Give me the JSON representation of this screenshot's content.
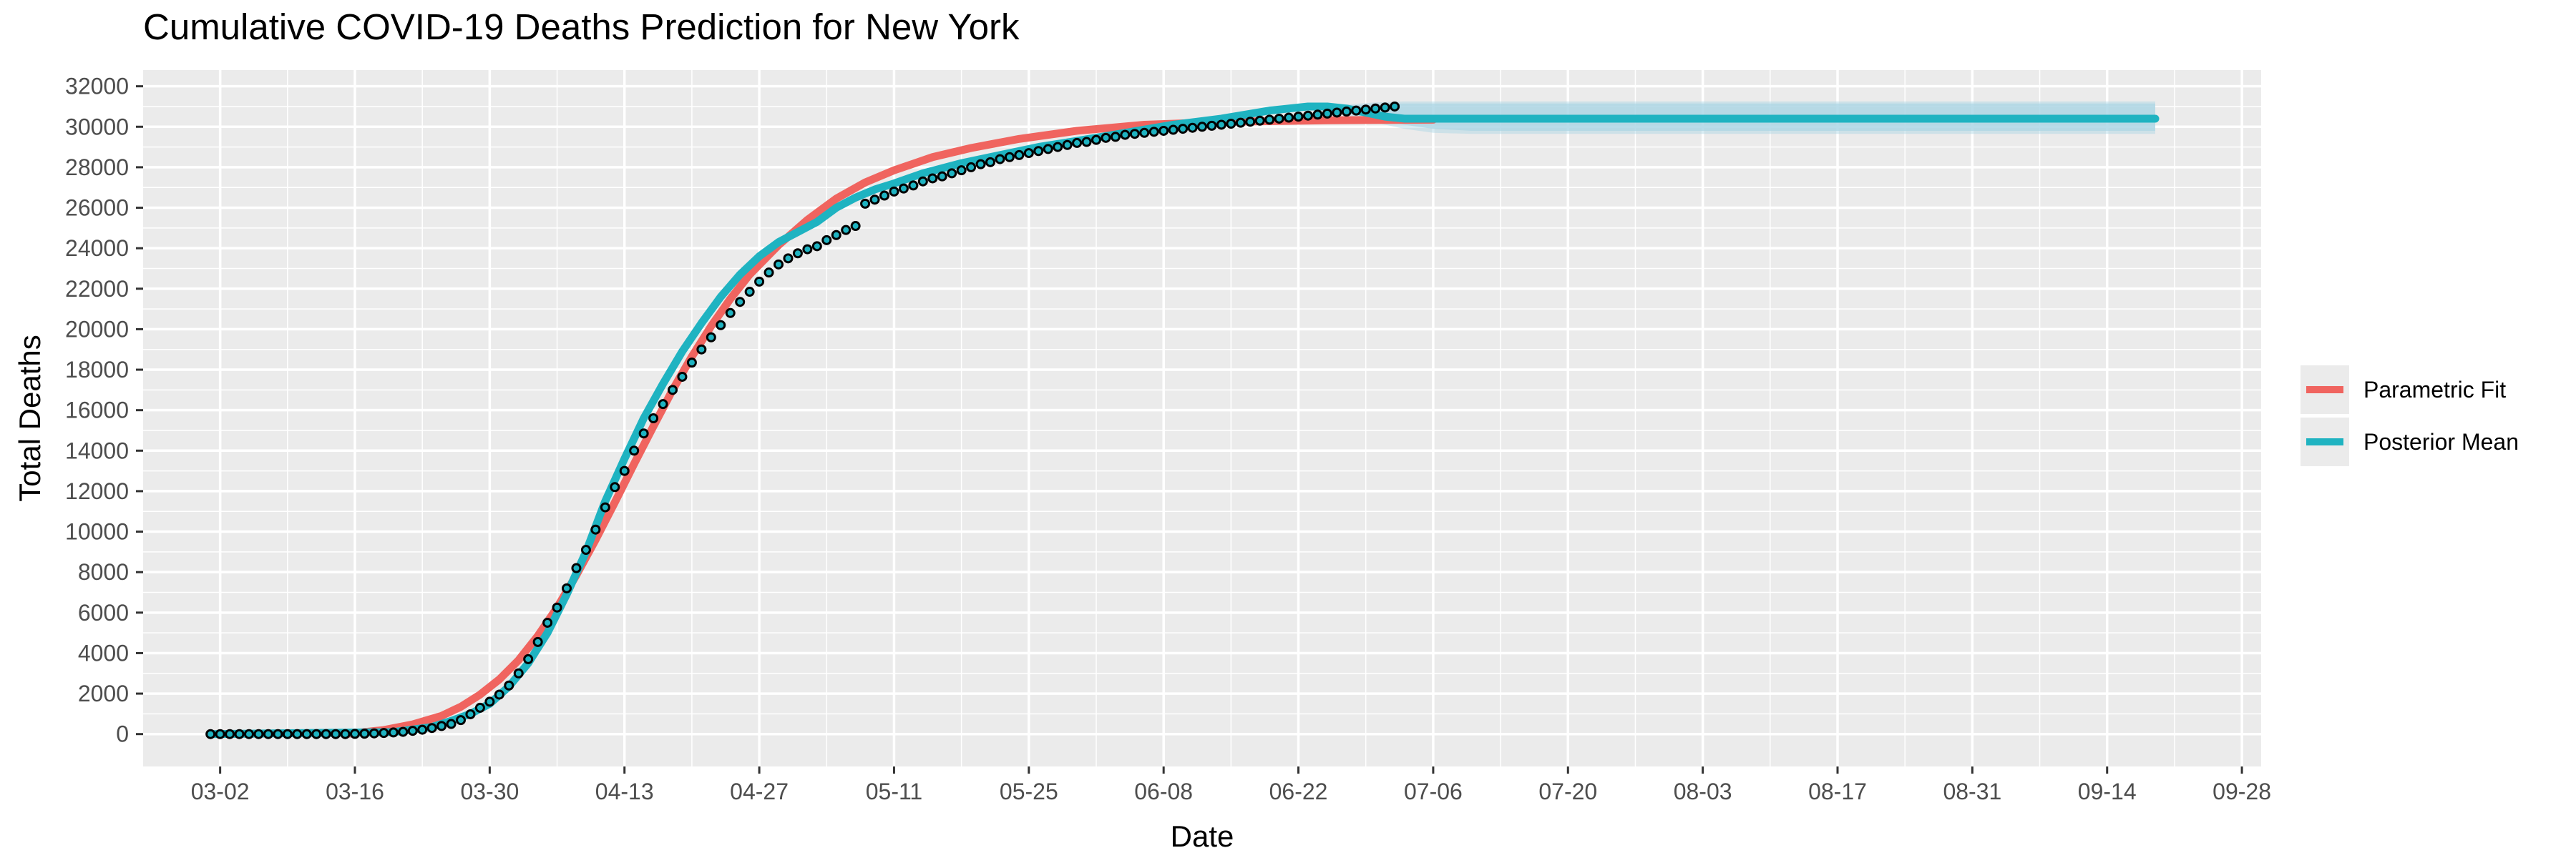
{
  "chart_data": {
    "type": "line",
    "title": "Cumulative COVID-19 Deaths Prediction for New York",
    "xlabel": "Date",
    "ylabel": "Total Deaths",
    "x_axis": {
      "type": "date",
      "year": 2020,
      "range": [
        "2020-02-23",
        "2020-09-30"
      ],
      "ticks": [
        "2020-03-02",
        "2020-03-16",
        "2020-03-30",
        "2020-04-13",
        "2020-04-27",
        "2020-05-11",
        "2020-05-25",
        "2020-06-08",
        "2020-06-22",
        "2020-07-06",
        "2020-07-20",
        "2020-08-03",
        "2020-08-17",
        "2020-08-31",
        "2020-09-14",
        "2020-09-28"
      ],
      "tick_labels": [
        "03-02",
        "03-16",
        "03-30",
        "04-13",
        "04-27",
        "05-11",
        "05-25",
        "06-08",
        "06-22",
        "07-06",
        "07-20",
        "08-03",
        "08-17",
        "08-31",
        "09-14",
        "09-28"
      ]
    },
    "y_axis": {
      "range": [
        -1600,
        32800
      ],
      "ticks": [
        0,
        2000,
        4000,
        6000,
        8000,
        10000,
        12000,
        14000,
        16000,
        18000,
        20000,
        22000,
        24000,
        26000,
        28000,
        30000,
        32000
      ],
      "tick_labels": [
        "0",
        "2000",
        "4000",
        "6000",
        "8000",
        "10000",
        "12000",
        "14000",
        "16000",
        "18000",
        "20000",
        "22000",
        "24000",
        "26000",
        "28000",
        "30000",
        "32000"
      ]
    },
    "grid": true,
    "legend": {
      "placement": "right"
    },
    "colors": {
      "panel_background": "#ebebeb",
      "grid": "#ffffff",
      "parametric_fit": "#f0645f",
      "posterior_mean": "#1fb3c1",
      "observed_points_fill": "#1fb3c1",
      "observed_points_stroke": "#000000",
      "credible_band": "#a9d4e4"
    },
    "series": [
      {
        "name": "Parametric Fit",
        "kind": "line",
        "x": [
          "2020-03-15",
          "2020-03-19",
          "2020-03-22",
          "2020-03-25",
          "2020-03-27",
          "2020-03-29",
          "2020-03-31",
          "2020-04-02",
          "2020-04-04",
          "2020-04-06",
          "2020-04-08",
          "2020-04-10",
          "2020-04-12",
          "2020-04-14",
          "2020-04-16",
          "2020-04-18",
          "2020-04-20",
          "2020-04-22",
          "2020-04-24",
          "2020-04-26",
          "2020-04-29",
          "2020-05-02",
          "2020-05-05",
          "2020-05-08",
          "2020-05-11",
          "2020-05-15",
          "2020-05-19",
          "2020-05-24",
          "2020-05-30",
          "2020-06-06",
          "2020-06-15",
          "2020-06-25",
          "2020-07-06"
        ],
        "y": [
          0,
          200,
          480,
          900,
          1350,
          1950,
          2700,
          3650,
          4850,
          6250,
          7850,
          9600,
          11450,
          13350,
          15200,
          17000,
          18650,
          20150,
          21500,
          22700,
          24150,
          25400,
          26450,
          27250,
          27850,
          28500,
          28950,
          29400,
          29800,
          30100,
          30250,
          30320,
          30350
        ]
      },
      {
        "name": "Posterior Mean",
        "kind": "line",
        "x": [
          "2020-03-01",
          "2020-03-20",
          "2020-03-24",
          "2020-03-26",
          "2020-03-28",
          "2020-03-30",
          "2020-04-01",
          "2020-04-03",
          "2020-04-05",
          "2020-04-07",
          "2020-04-09",
          "2020-04-11",
          "2020-04-13",
          "2020-04-15",
          "2020-04-17",
          "2020-04-19",
          "2020-04-21",
          "2020-04-23",
          "2020-04-25",
          "2020-04-27",
          "2020-04-29",
          "2020-05-01",
          "2020-05-03",
          "2020-05-05",
          "2020-05-07",
          "2020-05-09",
          "2020-05-11",
          "2020-05-14",
          "2020-05-18",
          "2020-05-22",
          "2020-05-26",
          "2020-05-30",
          "2020-06-04",
          "2020-06-09",
          "2020-06-14",
          "2020-06-19",
          "2020-06-23",
          "2020-06-25",
          "2020-06-27",
          "2020-06-29",
          "2020-07-01",
          "2020-07-03",
          "2020-07-05",
          "2020-07-08",
          "2020-07-15",
          "2020-09-19"
        ],
        "y": [
          0,
          100,
          350,
          650,
          1000,
          1500,
          2350,
          3500,
          5000,
          6900,
          9000,
          11500,
          13600,
          15600,
          17300,
          18900,
          20300,
          21600,
          22700,
          23600,
          24300,
          24800,
          25300,
          26000,
          26500,
          26900,
          27200,
          27700,
          28200,
          28600,
          29000,
          29300,
          29700,
          30100,
          30400,
          30800,
          31000,
          31000,
          30900,
          30700,
          30500,
          30400,
          30400,
          30400,
          30400,
          30400
        ]
      },
      {
        "name": "Credible Band",
        "kind": "band",
        "x": [
          "2020-06-24",
          "2020-06-27",
          "2020-06-30",
          "2020-07-03",
          "2020-07-06",
          "2020-07-10",
          "2020-09-19"
        ],
        "lower": [
          30900,
          30700,
          30400,
          30100,
          29900,
          29800,
          29800
        ],
        "upper": [
          31000,
          31050,
          31100,
          31150,
          31150,
          31150,
          31150
        ],
        "outer_lower": [
          30850,
          30600,
          30200,
          29900,
          29700,
          29650,
          29650
        ],
        "outer_upper": [
          31000,
          31100,
          31200,
          31250,
          31250,
          31250,
          31250
        ]
      },
      {
        "name": "Observed",
        "kind": "points",
        "start_date": "2020-03-01",
        "y": [
          0,
          0,
          0,
          0,
          0,
          0,
          0,
          0,
          0,
          0,
          0,
          0,
          0,
          0,
          0,
          10,
          20,
          35,
          55,
          80,
          110,
          160,
          215,
          300,
          400,
          500,
          690,
          980,
          1300,
          1600,
          1950,
          2400,
          3000,
          3700,
          4550,
          5500,
          6250,
          7200,
          8200,
          9100,
          10100,
          11200,
          12200,
          13000,
          14000,
          14850,
          15600,
          16300,
          17000,
          17650,
          18350,
          19000,
          19600,
          20200,
          20800,
          21350,
          21850,
          22350,
          22800,
          23200,
          23500,
          23750,
          23950,
          24100,
          24400,
          24650,
          24900,
          25100,
          26200,
          26400,
          26600,
          26800,
          26950,
          27100,
          27300,
          27450,
          27550,
          27700,
          27850,
          28000,
          28150,
          28250,
          28400,
          28500,
          28600,
          28700,
          28800,
          28900,
          29000,
          29100,
          29200,
          29250,
          29350,
          29450,
          29500,
          29600,
          29650,
          29700,
          29750,
          29800,
          29850,
          29900,
          29950,
          30000,
          30050,
          30100,
          30150,
          30200,
          30250,
          30300,
          30350,
          30400,
          30450,
          30500,
          30550,
          30600,
          30650,
          30700,
          30750,
          30800,
          30850,
          30900,
          30950,
          31000
        ]
      }
    ]
  }
}
